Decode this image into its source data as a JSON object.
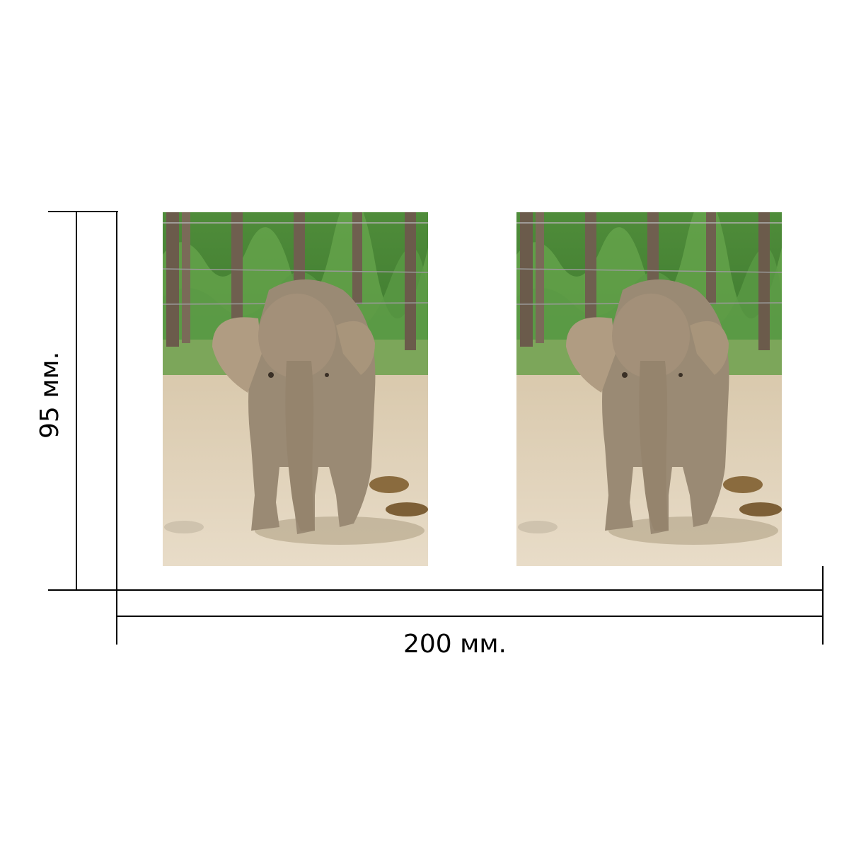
{
  "dimensions": {
    "width_label": "200 мм.",
    "height_label": "95 мм."
  },
  "photos": [
    {
      "subject": "baby-elephant-photo"
    },
    {
      "subject": "baby-elephant-photo"
    }
  ],
  "colors": {
    "line": "#000000",
    "background": "#ffffff"
  }
}
